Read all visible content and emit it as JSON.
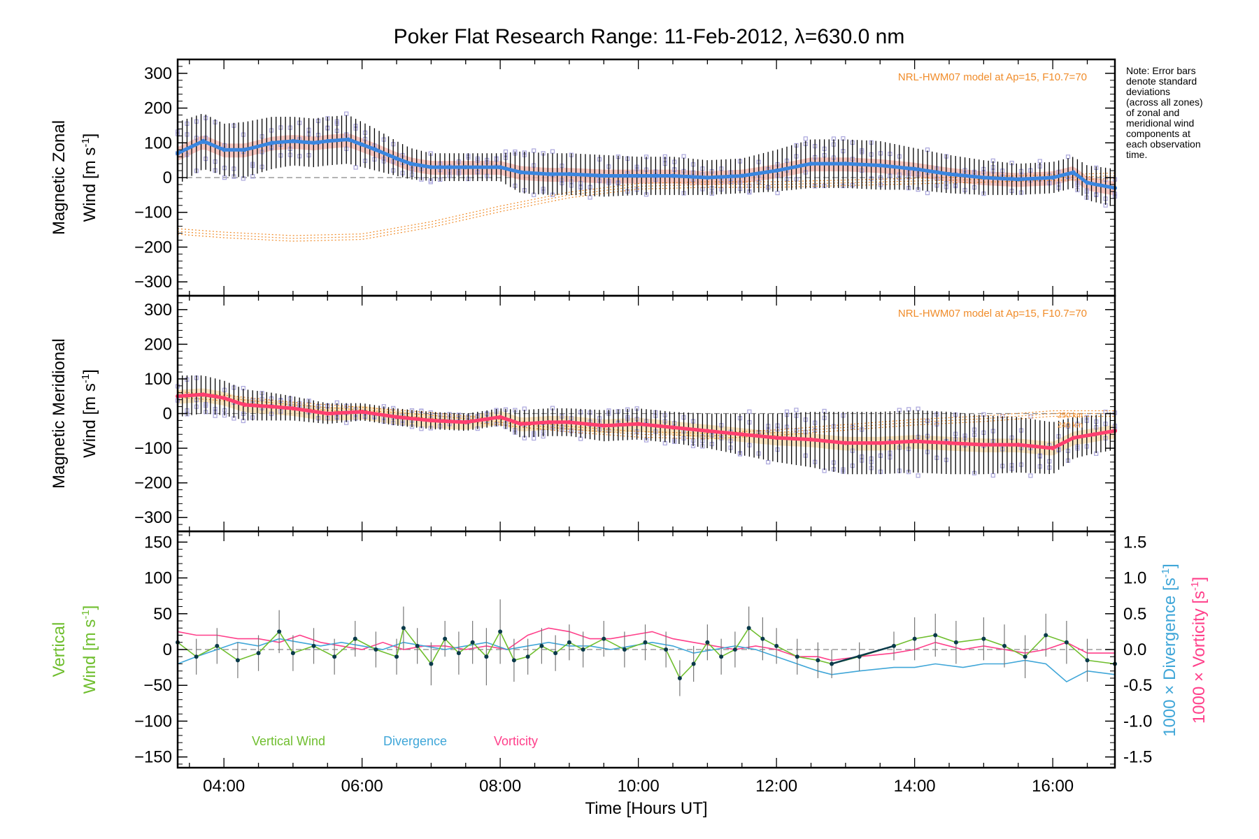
{
  "title": "Poker Flat Research Range: 11-Feb-2012, λ=630.0 nm",
  "note": [
    "Note: Error bars",
    "denote standard",
    "deviations",
    "(across all zones)",
    "of zonal and",
    "meridional wind",
    "components at",
    "each observation",
    "time."
  ],
  "colors": {
    "zonal": "#3a86e0",
    "meridional": "#ff3f6f",
    "vertical": "#6fbe2e",
    "divergence": "#3fa6d8",
    "vorticity": "#ff3f8a",
    "model": "#f08c2a",
    "scatter": "#aaa6dc",
    "shade_zonal": "#f4b8b0",
    "shade_meridional": "#f7ddb0",
    "errorbar": "#000000",
    "vertical_err": "#777777",
    "zero_line": "#888888"
  },
  "chart_data": [
    {
      "type": "line",
      "panel": "zonal",
      "ylabel_line1": "Magnetic Zonal",
      "ylabel_line2": "Wind [m s",
      "ylabel_sup": "-1",
      "ylabel_end": "]",
      "model_label": "NRL-HWM07 model at Ap=15, F10.7=70",
      "xlim": [
        3.33,
        16.9
      ],
      "ylim": [
        -340,
        340
      ],
      "yticks": [
        300,
        200,
        100,
        0,
        -100,
        -200,
        -300
      ],
      "grid": false,
      "series": [
        {
          "key": "zonal",
          "x": [
            3.33,
            3.7,
            4.0,
            4.3,
            4.7,
            5.0,
            5.3,
            5.5,
            5.8,
            6.0,
            6.2,
            6.5,
            6.7,
            7.0,
            7.5,
            8.0,
            8.3,
            8.7,
            9.0,
            9.5,
            10.0,
            10.5,
            11.0,
            11.5,
            12.0,
            12.5,
            13.0,
            13.5,
            14.0,
            14.5,
            15.0,
            15.5,
            16.0,
            16.3,
            16.5,
            16.9
          ],
          "values": [
            70,
            105,
            80,
            80,
            100,
            105,
            100,
            105,
            110,
            95,
            80,
            55,
            40,
            30,
            30,
            30,
            15,
            10,
            10,
            5,
            5,
            5,
            0,
            5,
            20,
            40,
            40,
            35,
            25,
            10,
            0,
            -5,
            0,
            15,
            -15,
            -30
          ],
          "err": [
            90,
            80,
            75,
            80,
            75,
            70,
            70,
            70,
            70,
            65,
            60,
            50,
            45,
            40,
            40,
            40,
            60,
            60,
            60,
            60,
            55,
            55,
            50,
            50,
            60,
            70,
            70,
            70,
            60,
            55,
            50,
            45,
            45,
            45,
            50,
            55
          ]
        },
        {
          "key": "model",
          "x": [
            3.33,
            4.0,
            5.0,
            6.0,
            7.0,
            8.0,
            9.0,
            10.0,
            11.0,
            12.0,
            13.0,
            14.0,
            15.0,
            16.0,
            16.9
          ],
          "values": [
            -155,
            -165,
            -175,
            -170,
            -135,
            -90,
            -50,
            -25,
            -20,
            -20,
            -15,
            -10,
            -5,
            0,
            5
          ]
        }
      ]
    },
    {
      "type": "line",
      "panel": "meridional",
      "ylabel_line1": "Magnetic Meridional",
      "ylabel_line2": "Wind [m s",
      "ylabel_sup": "-1",
      "ylabel_end": "]",
      "model_label": "NRL-HWM07 model at Ap=15, F10.7=70",
      "altitude_labels": [
        "250 km",
        "240 km"
      ],
      "xlim": [
        3.33,
        16.9
      ],
      "ylim": [
        -340,
        340
      ],
      "yticks": [
        300,
        200,
        100,
        0,
        -100,
        -200,
        -300
      ],
      "grid": false,
      "series": [
        {
          "key": "meridional",
          "x": [
            3.33,
            3.7,
            4.0,
            4.3,
            4.7,
            5.0,
            5.5,
            6.0,
            6.5,
            7.0,
            7.5,
            8.0,
            8.3,
            8.7,
            9.0,
            9.5,
            10.0,
            10.5,
            11.0,
            11.5,
            12.0,
            12.5,
            13.0,
            13.5,
            14.0,
            14.5,
            15.0,
            15.5,
            16.0,
            16.3,
            16.6,
            16.9
          ],
          "values": [
            50,
            55,
            45,
            25,
            20,
            15,
            0,
            5,
            -10,
            -20,
            -25,
            -10,
            -30,
            -25,
            -25,
            -35,
            -30,
            -40,
            -50,
            -60,
            -70,
            -75,
            -85,
            -85,
            -80,
            -85,
            -90,
            -90,
            -100,
            -70,
            -60,
            -50
          ],
          "err": [
            60,
            55,
            50,
            45,
            40,
            35,
            30,
            25,
            25,
            25,
            25,
            25,
            40,
            40,
            40,
            45,
            45,
            45,
            50,
            60,
            70,
            80,
            90,
            90,
            90,
            90,
            85,
            80,
            75,
            60,
            55,
            55
          ]
        },
        {
          "key": "model",
          "x": [
            3.33,
            4.0,
            5.0,
            6.0,
            7.0,
            8.0,
            9.0,
            10.0,
            11.0,
            12.0,
            13.0,
            14.0,
            15.0,
            16.0,
            16.9
          ],
          "values": [
            55,
            45,
            25,
            10,
            -5,
            -25,
            -45,
            -60,
            -65,
            -55,
            -40,
            -25,
            -15,
            0,
            0
          ]
        }
      ]
    },
    {
      "type": "line",
      "panel": "vertical",
      "ylabel_green_1": "Vertical",
      "ylabel_green_2": "Wind",
      "ylabel_black": "[m s",
      "ylabel_sup": "-1",
      "ylabel_end": "]",
      "right_label_1": "1000 × Divergence",
      "right_unit_1": "[s",
      "right_label_2": "1000 × Vorticity",
      "right_unit_2": "[s",
      "right_sup": "-1",
      "right_end": "]",
      "xlabel": "Time [Hours UT]",
      "xlim": [
        3.33,
        16.9
      ],
      "ylim": [
        -165,
        165
      ],
      "yticks": [
        150,
        100,
        50,
        0,
        -50,
        -100,
        -150
      ],
      "ylim_right": [
        -1.65,
        1.65
      ],
      "yticks_right": [
        "1.5",
        "1.0",
        "0.5",
        "0.0",
        "-0.5",
        "-1.0",
        "-1.5"
      ],
      "xticks": [
        4,
        6,
        8,
        10,
        12,
        14,
        16
      ],
      "xtick_labels": [
        "04:00",
        "06:00",
        "08:00",
        "10:00",
        "12:00",
        "14:00",
        "16:00"
      ],
      "legend": [
        "Vertical Wind",
        "Divergence",
        "Vorticity"
      ],
      "grid": false,
      "series": [
        {
          "key": "vertical",
          "name": "Vertical Wind",
          "x": [
            3.33,
            3.6,
            3.9,
            4.2,
            4.5,
            4.8,
            5.0,
            5.3,
            5.6,
            5.9,
            6.2,
            6.5,
            6.6,
            6.8,
            7.0,
            7.2,
            7.4,
            7.6,
            7.8,
            8.0,
            8.2,
            8.4,
            8.6,
            8.8,
            9.0,
            9.2,
            9.5,
            9.8,
            10.1,
            10.4,
            10.6,
            10.8,
            11.0,
            11.2,
            11.4,
            11.6,
            11.8,
            12.0,
            12.3,
            12.6,
            12.8,
            13.2,
            13.7,
            14.0,
            14.3,
            14.6,
            15.0,
            15.3,
            15.6,
            15.9,
            16.2,
            16.5,
            16.9
          ],
          "values": [
            10,
            -10,
            5,
            -15,
            -5,
            25,
            -5,
            5,
            -10,
            15,
            0,
            -10,
            30,
            5,
            -20,
            15,
            -5,
            10,
            -10,
            25,
            -15,
            -10,
            5,
            -5,
            10,
            0,
            15,
            0,
            10,
            0,
            -40,
            -20,
            10,
            -10,
            0,
            30,
            15,
            5,
            -10,
            -15,
            -20,
            -10,
            5,
            15,
            20,
            10,
            15,
            5,
            -10,
            20,
            10,
            -15,
            -20
          ],
          "err": [
            30,
            25,
            25,
            25,
            25,
            30,
            25,
            25,
            25,
            25,
            25,
            25,
            30,
            25,
            30,
            25,
            30,
            30,
            40,
            45,
            30,
            25,
            25,
            25,
            25,
            25,
            25,
            25,
            25,
            25,
            25,
            25,
            25,
            25,
            25,
            30,
            30,
            25,
            25,
            25,
            20,
            20,
            20,
            30,
            30,
            30,
            30,
            30,
            30,
            30,
            30,
            30,
            30
          ],
          "segment_x": [
            12.8,
            13.7
          ],
          "segment_values": [
            -20,
            5
          ]
        },
        {
          "key": "divergence",
          "name": "Divergence",
          "x": [
            3.33,
            3.6,
            3.9,
            4.2,
            4.5,
            4.8,
            5.1,
            5.4,
            5.7,
            6.0,
            6.3,
            6.6,
            6.9,
            7.2,
            7.5,
            7.8,
            8.1,
            8.4,
            8.7,
            9.0,
            9.3,
            9.6,
            9.9,
            10.2,
            10.5,
            10.8,
            11.1,
            11.4,
            11.7,
            12.0,
            12.3,
            12.6,
            12.8,
            13.2,
            13.7,
            14.0,
            14.3,
            14.7,
            15.0,
            15.3,
            15.6,
            15.9,
            16.2,
            16.5,
            16.9
          ],
          "values": [
            -0.2,
            -0.1,
            0.0,
            0.1,
            0.05,
            0.15,
            0.1,
            0.05,
            0.1,
            0.05,
            0.0,
            0.1,
            0.05,
            0.0,
            0.05,
            0.1,
            0.0,
            0.05,
            0.1,
            0.05,
            0.05,
            0.0,
            0.05,
            0.1,
            0.05,
            -0.05,
            0.0,
            0.05,
            0.0,
            -0.1,
            -0.2,
            -0.3,
            -0.35,
            -0.3,
            -0.25,
            -0.25,
            -0.2,
            -0.25,
            -0.2,
            -0.2,
            -0.15,
            -0.2,
            -0.45,
            -0.3,
            -0.35
          ]
        },
        {
          "key": "vorticity",
          "name": "Vorticity",
          "x": [
            3.33,
            3.6,
            3.9,
            4.2,
            4.5,
            4.8,
            5.1,
            5.4,
            5.7,
            6.0,
            6.3,
            6.6,
            6.9,
            7.2,
            7.5,
            7.8,
            8.1,
            8.4,
            8.7,
            9.0,
            9.3,
            9.6,
            9.9,
            10.2,
            10.5,
            10.8,
            11.1,
            11.4,
            11.7,
            12.0,
            12.3,
            12.6,
            12.8,
            13.2,
            13.7,
            14.0,
            14.3,
            14.7,
            15.0,
            15.3,
            15.6,
            15.9,
            16.2,
            16.5,
            16.9
          ],
          "values": [
            0.25,
            0.2,
            0.2,
            0.15,
            0.15,
            0.1,
            0.2,
            0.1,
            0.05,
            0.0,
            0.1,
            0.0,
            0.05,
            0.05,
            0.0,
            0.05,
            0.0,
            0.2,
            0.3,
            0.25,
            0.15,
            0.15,
            0.2,
            0.25,
            0.15,
            0.1,
            0.05,
            0.0,
            0.05,
            0.0,
            -0.1,
            -0.1,
            -0.15,
            -0.1,
            -0.05,
            0.0,
            0.1,
            0.0,
            0.05,
            0.0,
            -0.05,
            0.0,
            0.1,
            -0.05,
            -0.05
          ]
        }
      ]
    }
  ]
}
